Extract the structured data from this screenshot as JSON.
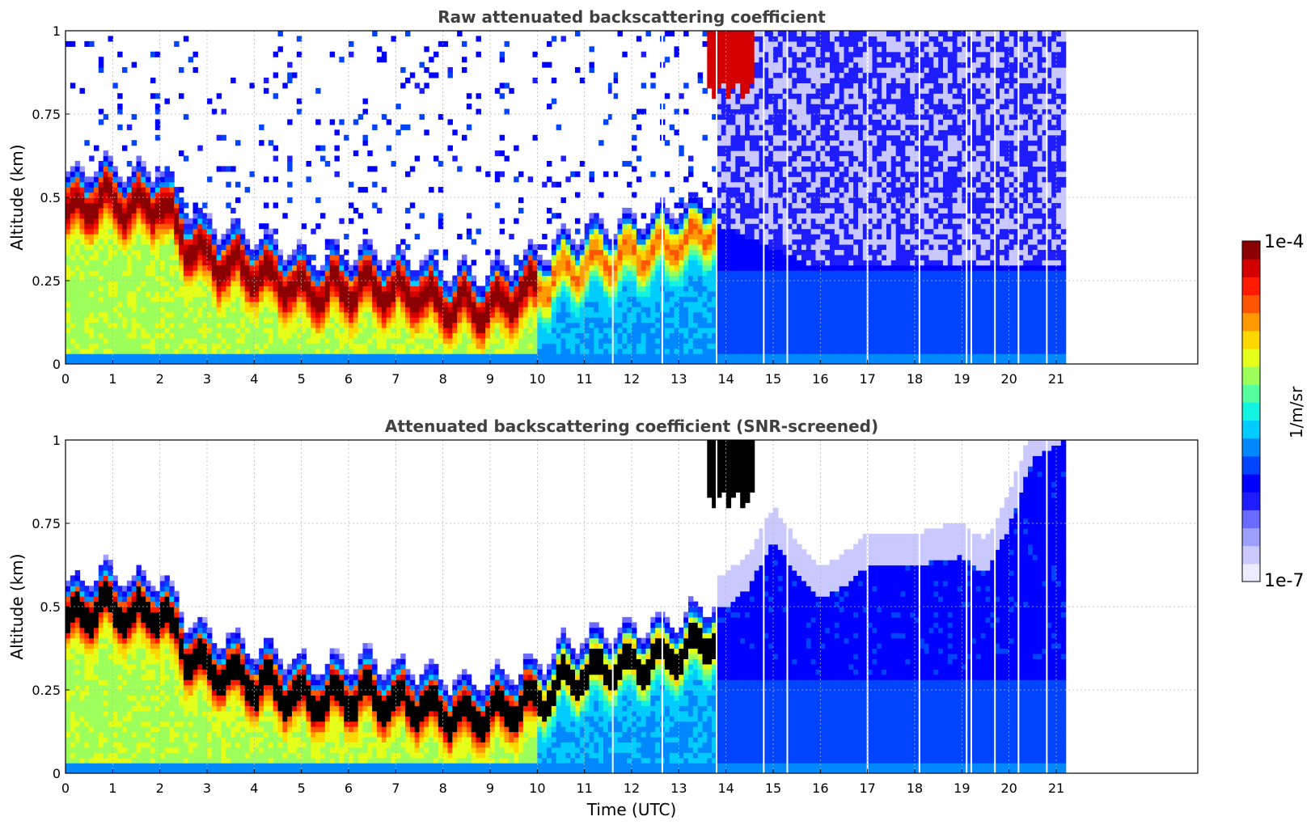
{
  "colors": {
    "colormap": [
      "#ececff",
      "#c9c9ff",
      "#9f9fff",
      "#6b6bff",
      "#1d1dff",
      "#0000ff",
      "#0044ff",
      "#0088ff",
      "#00ccff",
      "#12f3e0",
      "#55ff9f",
      "#9dff5a",
      "#e4ff19",
      "#ffd700",
      "#ff9a00",
      "#ff5600",
      "#ff1a00",
      "#d40000",
      "#8b0000"
    ],
    "saturated": "#000000",
    "grid": "#b5b5b5"
  },
  "chart_data": [
    {
      "type": "heatmap",
      "id": "raw",
      "title": "Raw attenuated backscattering coefficient",
      "xlabel": "",
      "ylabel": "Altitude (km)",
      "xlim": [
        0,
        24
      ],
      "ylim": [
        0,
        1
      ],
      "data_xmax": 21.2,
      "x_ticks": [
        0,
        1,
        2,
        3,
        4,
        5,
        6,
        7,
        8,
        9,
        10,
        11,
        12,
        13,
        14,
        15,
        16,
        17,
        18,
        19,
        20,
        21
      ],
      "x_ticklabels": [
        "0",
        "1",
        "2",
        "3",
        "4",
        "5",
        "6",
        "7",
        "8",
        "9",
        "10",
        "11",
        "12",
        "13",
        "14",
        "15",
        "16",
        "17",
        "18",
        "19",
        "20",
        "21"
      ],
      "y_ticks": [
        0,
        0.25,
        0.5,
        0.75,
        1
      ],
      "y_ticklabels": [
        "0",
        "0.25",
        "0.5",
        "0.75",
        "1"
      ],
      "grid": true,
      "log10_value_range": [
        -7,
        -4
      ],
      "boundary_layer_top_km": {
        "t": [
          0,
          0.5,
          1,
          1.5,
          2,
          2.5,
          3,
          3.5,
          4,
          4.5,
          5,
          5.5,
          6,
          6.5,
          7,
          7.5,
          8,
          8.5,
          9,
          9.5,
          10,
          10.5,
          11,
          11.5,
          12,
          12.5,
          13,
          13.5,
          13.8
        ],
        "z": [
          0.55,
          0.6,
          0.6,
          0.58,
          0.6,
          0.48,
          0.42,
          0.41,
          0.38,
          0.36,
          0.33,
          0.33,
          0.34,
          0.34,
          0.32,
          0.32,
          0.29,
          0.28,
          0.28,
          0.31,
          0.33,
          0.38,
          0.41,
          0.42,
          0.44,
          0.45,
          0.47,
          0.5,
          0.52
        ]
      },
      "upper_cloud": {
        "t_start": 13.6,
        "t_end": 14.6,
        "z_bottom_km": 0.82
      },
      "missing_profiles_utc": [
        11.6,
        12.65,
        13.8,
        14.8,
        15.3,
        17.0,
        18.1,
        19.1,
        19.2,
        19.7,
        20.2,
        20.8
      ]
    },
    {
      "type": "heatmap",
      "id": "snr",
      "title": "Attenuated backscattering coefficient (SNR-screened)",
      "xlabel": "Time (UTC)",
      "ylabel": "Altitude (km)",
      "xlim": [
        0,
        24
      ],
      "ylim": [
        0,
        1
      ],
      "data_xmax": 21.2,
      "x_ticks": [
        0,
        1,
        2,
        3,
        4,
        5,
        6,
        7,
        8,
        9,
        10,
        11,
        12,
        13,
        14,
        15,
        16,
        17,
        18,
        19,
        20,
        21
      ],
      "x_ticklabels": [
        "0",
        "1",
        "2",
        "3",
        "4",
        "5",
        "6",
        "7",
        "8",
        "9",
        "10",
        "11",
        "12",
        "13",
        "14",
        "15",
        "16",
        "17",
        "18",
        "19",
        "20",
        "21"
      ],
      "y_ticks": [
        0,
        0.25,
        0.5,
        0.75,
        1
      ],
      "y_ticklabels": [
        "0",
        "0.25",
        "0.5",
        "0.75",
        "1"
      ],
      "grid": true,
      "log10_value_range": [
        -7,
        -4
      ],
      "screened_top_km": {
        "t": [
          14.0,
          14.5,
          15.0,
          15.5,
          16.0,
          16.5,
          17.0,
          17.5,
          18.0,
          18.5,
          19.0,
          19.5,
          20.0,
          20.5,
          21.2
        ],
        "z": [
          0.5,
          0.56,
          0.7,
          0.6,
          0.52,
          0.56,
          0.62,
          0.62,
          0.62,
          0.64,
          0.65,
          0.6,
          0.74,
          0.95,
          1.0
        ]
      }
    }
  ],
  "colorbar": {
    "label": "1/m/sr",
    "max_label": "1e-4",
    "min_label": "1e-7",
    "position": "right"
  }
}
